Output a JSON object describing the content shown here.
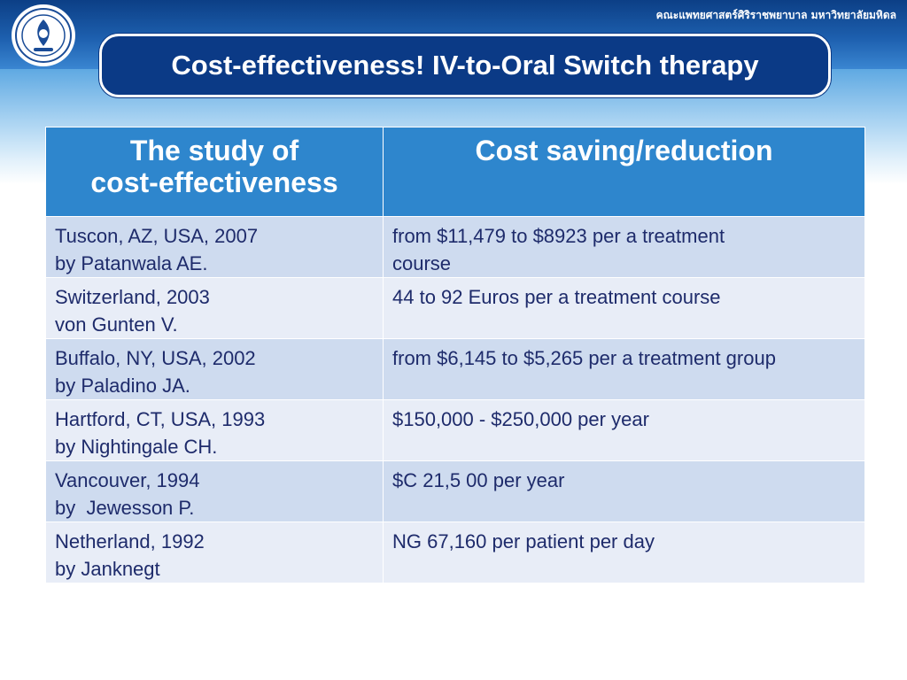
{
  "header": {
    "faculty_text": "คณะแพทยศาสตร์ศิริราชพยาบาล มหาวิทยาลัยมหิดล",
    "logo_icon": "university-seal-icon",
    "title": "Cost-effectiveness! IV-to-Oral Switch therapy"
  },
  "colors": {
    "header_blue": "#0c3f86",
    "table_header": "#2e86cd",
    "row_dark": "#cedbef",
    "row_light": "#e8edf7",
    "text": "#1e2b6b"
  },
  "table": {
    "headers": [
      [
        "The study of",
        "cost-effectiveness"
      ],
      [
        "Cost saving/reduction"
      ]
    ],
    "rows": [
      {
        "study": [
          "Tuscon, AZ, USA, 2007",
          "by Patanwala AE."
        ],
        "saving": [
          "from $11,479 to $8923 per a treatment",
          "course"
        ]
      },
      {
        "study": [
          "Switzerland, 2003",
          "von Gunten V."
        ],
        "saving": [
          "44 to 92 Euros per a treatment course"
        ]
      },
      {
        "study": [
          "Buffalo, NY, USA, 2002",
          "by Paladino JA."
        ],
        "saving": [
          "from $6,145 to $5,265 per a treatment group"
        ]
      },
      {
        "study": [
          "Hartford, CT, USA, 1993",
          "by Nightingale CH."
        ],
        "saving": [
          "$150,000 - $250,000 per year"
        ]
      },
      {
        "study": [
          "Vancouver, 1994",
          "by  Jewesson P."
        ],
        "saving": [
          "$C 21,5 00 per year"
        ]
      },
      {
        "study": [
          "Netherland, 1992",
          "by Janknegt"
        ],
        "saving": [
          "NG 67,160 per patient per day"
        ]
      }
    ]
  }
}
